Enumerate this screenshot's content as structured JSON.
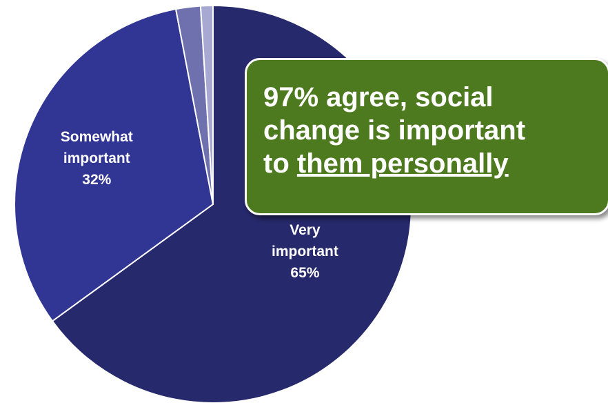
{
  "chart_data": {
    "type": "pie",
    "title": "",
    "slices": [
      {
        "label_lines": [
          "Very",
          "important",
          "65%"
        ],
        "value": 65,
        "color": "#26296b"
      },
      {
        "label_lines": [
          "Somewhat",
          "important",
          "32%"
        ],
        "value": 32,
        "color": "#313593"
      },
      {
        "label_lines": [],
        "value": 2,
        "color": "#6e71ad"
      },
      {
        "label_lines": [],
        "value": 1,
        "color": "#a7a9d2"
      }
    ],
    "start_angle_deg": 0,
    "direction": "clockwise"
  },
  "callout": {
    "line1": "97% agree, social",
    "line2": "change is important",
    "line3_prefix": "to ",
    "line3_underlined": "them personally",
    "bg_color": "#4e7a1f"
  }
}
